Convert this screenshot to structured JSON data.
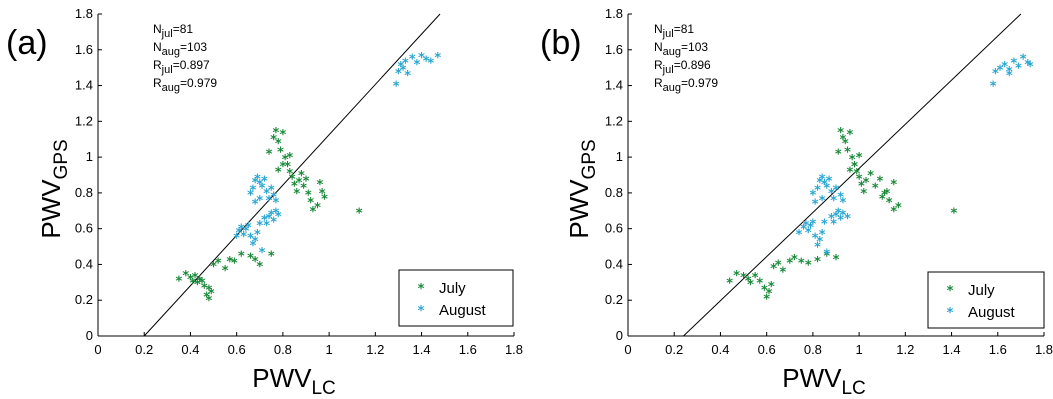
{
  "colors": {
    "july": "#1a8a3a",
    "august": "#2aa6d2",
    "axis": "#000000"
  },
  "chart_data": [
    {
      "type": "scatter",
      "panel_label": "(a)",
      "xlabel": {
        "base": "PWV",
        "sub": "LC"
      },
      "ylabel": {
        "base": "PWV",
        "sub": "GPS"
      },
      "xlim": [
        0,
        1.8
      ],
      "ylim": [
        0,
        1.8
      ],
      "xticks": [
        "0",
        "0.2",
        "0.4",
        "0.6",
        "0.8",
        "1",
        "1.2",
        "1.4",
        "1.6",
        "1.8"
      ],
      "yticks": [
        "0",
        "0.2",
        "0.4",
        "0.6",
        "0.8",
        "1",
        "1.2",
        "1.4",
        "1.6",
        "1.8"
      ],
      "stats": [
        {
          "base": "N",
          "sub": "jul",
          "value": "=81"
        },
        {
          "base": "N",
          "sub": "aug",
          "value": "=103"
        },
        {
          "base": "R",
          "sub": "jul",
          "value": "=0.897"
        },
        {
          "base": "R",
          "sub": "aug",
          "value": "=0.979"
        }
      ],
      "fit_line": [
        [
          0.2,
          0
        ],
        [
          1.48,
          1.8
        ]
      ],
      "legend": {
        "position": "bottom-right",
        "entries": [
          "July",
          "August"
        ]
      },
      "series": [
        {
          "name": "July",
          "points": [
            [
              0.35,
              0.31
            ],
            [
              0.38,
              0.34
            ],
            [
              0.4,
              0.32
            ],
            [
              0.41,
              0.3
            ],
            [
              0.42,
              0.33
            ],
            [
              0.43,
              0.29
            ],
            [
              0.44,
              0.31
            ],
            [
              0.45,
              0.3
            ],
            [
              0.46,
              0.27
            ],
            [
              0.47,
              0.22
            ],
            [
              0.48,
              0.2
            ],
            [
              0.48,
              0.26
            ],
            [
              0.49,
              0.24
            ],
            [
              0.5,
              0.39
            ],
            [
              0.52,
              0.41
            ],
            [
              0.55,
              0.37
            ],
            [
              0.57,
              0.42
            ],
            [
              0.59,
              0.41
            ],
            [
              0.62,
              0.45
            ],
            [
              0.66,
              0.44
            ],
            [
              0.68,
              0.42
            ],
            [
              0.7,
              0.39
            ],
            [
              0.75,
              0.45
            ],
            [
              0.77,
              1.14
            ],
            [
              0.78,
              1.08
            ],
            [
              0.79,
              1.03
            ],
            [
              0.8,
              1.13
            ],
            [
              0.81,
              0.99
            ],
            [
              0.82,
              0.95
            ],
            [
              0.83,
              0.91
            ],
            [
              0.84,
              0.88
            ],
            [
              0.85,
              0.84
            ],
            [
              0.86,
              0.8
            ],
            [
              0.87,
              0.86
            ],
            [
              0.88,
              0.9
            ],
            [
              0.89,
              0.83
            ],
            [
              0.9,
              0.87
            ],
            [
              0.91,
              0.79
            ],
            [
              0.92,
              0.75
            ],
            [
              0.93,
              0.7
            ],
            [
              0.95,
              0.72
            ],
            [
              0.96,
              0.85
            ],
            [
              0.97,
              0.8
            ],
            [
              0.98,
              0.77
            ],
            [
              0.8,
              0.95
            ],
            [
              0.78,
              0.92
            ],
            [
              0.76,
              1.1
            ],
            [
              0.74,
              1.02
            ],
            [
              0.83,
              1.0
            ],
            [
              1.13,
              0.69
            ]
          ]
        },
        {
          "name": "August",
          "points": [
            [
              0.6,
              0.55
            ],
            [
              0.61,
              0.58
            ],
            [
              0.62,
              0.6
            ],
            [
              0.63,
              0.56
            ],
            [
              0.64,
              0.59
            ],
            [
              0.65,
              0.61
            ],
            [
              0.66,
              0.55
            ],
            [
              0.67,
              0.51
            ],
            [
              0.68,
              0.53
            ],
            [
              0.69,
              0.57
            ],
            [
              0.7,
              0.62
            ],
            [
              0.71,
              0.47
            ],
            [
              0.72,
              0.65
            ],
            [
              0.73,
              0.62
            ],
            [
              0.74,
              0.66
            ],
            [
              0.75,
              0.68
            ],
            [
              0.76,
              0.64
            ],
            [
              0.77,
              0.69
            ],
            [
              0.78,
              0.67
            ],
            [
              0.66,
              0.79
            ],
            [
              0.67,
              0.82
            ],
            [
              0.68,
              0.86
            ],
            [
              0.69,
              0.88
            ],
            [
              0.7,
              0.85
            ],
            [
              0.71,
              0.83
            ],
            [
              0.72,
              0.87
            ],
            [
              0.73,
              0.8
            ],
            [
              0.74,
              0.76
            ],
            [
              0.75,
              0.82
            ],
            [
              0.76,
              0.78
            ],
            [
              0.77,
              0.75
            ],
            [
              0.7,
              0.76
            ],
            [
              0.68,
              0.74
            ],
            [
              1.29,
              1.4
            ],
            [
              1.3,
              1.47
            ],
            [
              1.31,
              1.51
            ],
            [
              1.32,
              1.49
            ],
            [
              1.33,
              1.53
            ],
            [
              1.34,
              1.46
            ],
            [
              1.36,
              1.55
            ],
            [
              1.38,
              1.52
            ],
            [
              1.4,
              1.56
            ],
            [
              1.42,
              1.54
            ],
            [
              1.44,
              1.53
            ],
            [
              1.47,
              1.56
            ]
          ]
        }
      ]
    },
    {
      "type": "scatter",
      "panel_label": "(b)",
      "xlabel": {
        "base": "PWV",
        "sub": "LC"
      },
      "ylabel": {
        "base": "PWV",
        "sub": "GPS"
      },
      "xlim": [
        0,
        1.8
      ],
      "ylim": [
        0,
        1.8
      ],
      "xticks": [
        "0",
        "0.2",
        "0.4",
        "0.6",
        "0.8",
        "1",
        "1.2",
        "1.4",
        "1.6",
        "1.8"
      ],
      "yticks": [
        "0",
        "0.2",
        "0.4",
        "0.6",
        "0.8",
        "1",
        "1.2",
        "1.4",
        "1.6",
        "1.8"
      ],
      "stats": [
        {
          "base": "N",
          "sub": "jul",
          "value": "=81"
        },
        {
          "base": "N",
          "sub": "aug",
          "value": "=103"
        },
        {
          "base": "R",
          "sub": "jul",
          "value": "=0.896"
        },
        {
          "base": "R",
          "sub": "aug",
          "value": "=0.979"
        }
      ],
      "fit_line": [
        [
          0.24,
          0
        ],
        [
          1.7,
          1.8
        ]
      ],
      "legend": {
        "position": "bottom-right",
        "entries": [
          "July",
          "August"
        ]
      },
      "series": [
        {
          "name": "July",
          "points": [
            [
              0.44,
              0.3
            ],
            [
              0.47,
              0.34
            ],
            [
              0.5,
              0.33
            ],
            [
              0.52,
              0.31
            ],
            [
              0.53,
              0.29
            ],
            [
              0.55,
              0.33
            ],
            [
              0.57,
              0.3
            ],
            [
              0.59,
              0.26
            ],
            [
              0.6,
              0.21
            ],
            [
              0.61,
              0.24
            ],
            [
              0.62,
              0.28
            ],
            [
              0.63,
              0.38
            ],
            [
              0.65,
              0.4
            ],
            [
              0.67,
              0.36
            ],
            [
              0.7,
              0.41
            ],
            [
              0.72,
              0.43
            ],
            [
              0.75,
              0.41
            ],
            [
              0.78,
              0.4
            ],
            [
              0.82,
              0.42
            ],
            [
              0.86,
              0.45
            ],
            [
              0.9,
              0.43
            ],
            [
              0.92,
              1.14
            ],
            [
              0.94,
              1.08
            ],
            [
              0.95,
              1.03
            ],
            [
              0.96,
              1.13
            ],
            [
              0.97,
              0.99
            ],
            [
              0.98,
              0.95
            ],
            [
              0.99,
              0.91
            ],
            [
              1.0,
              0.88
            ],
            [
              1.01,
              0.84
            ],
            [
              1.02,
              0.8
            ],
            [
              1.03,
              0.86
            ],
            [
              1.05,
              0.9
            ],
            [
              1.07,
              0.83
            ],
            [
              1.09,
              0.87
            ],
            [
              1.11,
              0.79
            ],
            [
              1.13,
              0.75
            ],
            [
              1.15,
              0.7
            ],
            [
              1.17,
              0.72
            ],
            [
              1.15,
              0.85
            ],
            [
              1.12,
              0.8
            ],
            [
              1.1,
              0.77
            ],
            [
              0.98,
              0.95
            ],
            [
              0.96,
              0.92
            ],
            [
              0.93,
              1.1
            ],
            [
              0.91,
              1.02
            ],
            [
              1.0,
              1.0
            ],
            [
              1.41,
              0.69
            ]
          ]
        },
        {
          "name": "August",
          "points": [
            [
              0.74,
              0.57
            ],
            [
              0.76,
              0.6
            ],
            [
              0.77,
              0.62
            ],
            [
              0.78,
              0.58
            ],
            [
              0.79,
              0.61
            ],
            [
              0.8,
              0.63
            ],
            [
              0.81,
              0.55
            ],
            [
              0.82,
              0.5
            ],
            [
              0.83,
              0.53
            ],
            [
              0.84,
              0.57
            ],
            [
              0.85,
              0.63
            ],
            [
              0.86,
              0.46
            ],
            [
              0.88,
              0.66
            ],
            [
              0.89,
              0.63
            ],
            [
              0.9,
              0.67
            ],
            [
              0.91,
              0.69
            ],
            [
              0.92,
              0.65
            ],
            [
              0.93,
              0.68
            ],
            [
              0.95,
              0.66
            ],
            [
              0.8,
              0.79
            ],
            [
              0.82,
              0.82
            ],
            [
              0.83,
              0.86
            ],
            [
              0.84,
              0.88
            ],
            [
              0.85,
              0.85
            ],
            [
              0.86,
              0.83
            ],
            [
              0.87,
              0.87
            ],
            [
              0.88,
              0.8
            ],
            [
              0.89,
              0.76
            ],
            [
              0.9,
              0.82
            ],
            [
              0.92,
              0.78
            ],
            [
              0.93,
              0.75
            ],
            [
              0.84,
              0.76
            ],
            [
              0.81,
              0.74
            ],
            [
              1.58,
              1.4
            ],
            [
              1.59,
              1.47
            ],
            [
              1.61,
              1.49
            ],
            [
              1.63,
              1.51
            ],
            [
              1.65,
              1.46
            ],
            [
              1.67,
              1.53
            ],
            [
              1.69,
              1.5
            ],
            [
              1.71,
              1.55
            ],
            [
              1.73,
              1.52
            ],
            [
              1.74,
              1.51
            ],
            [
              1.65,
              1.48
            ]
          ]
        }
      ]
    }
  ]
}
